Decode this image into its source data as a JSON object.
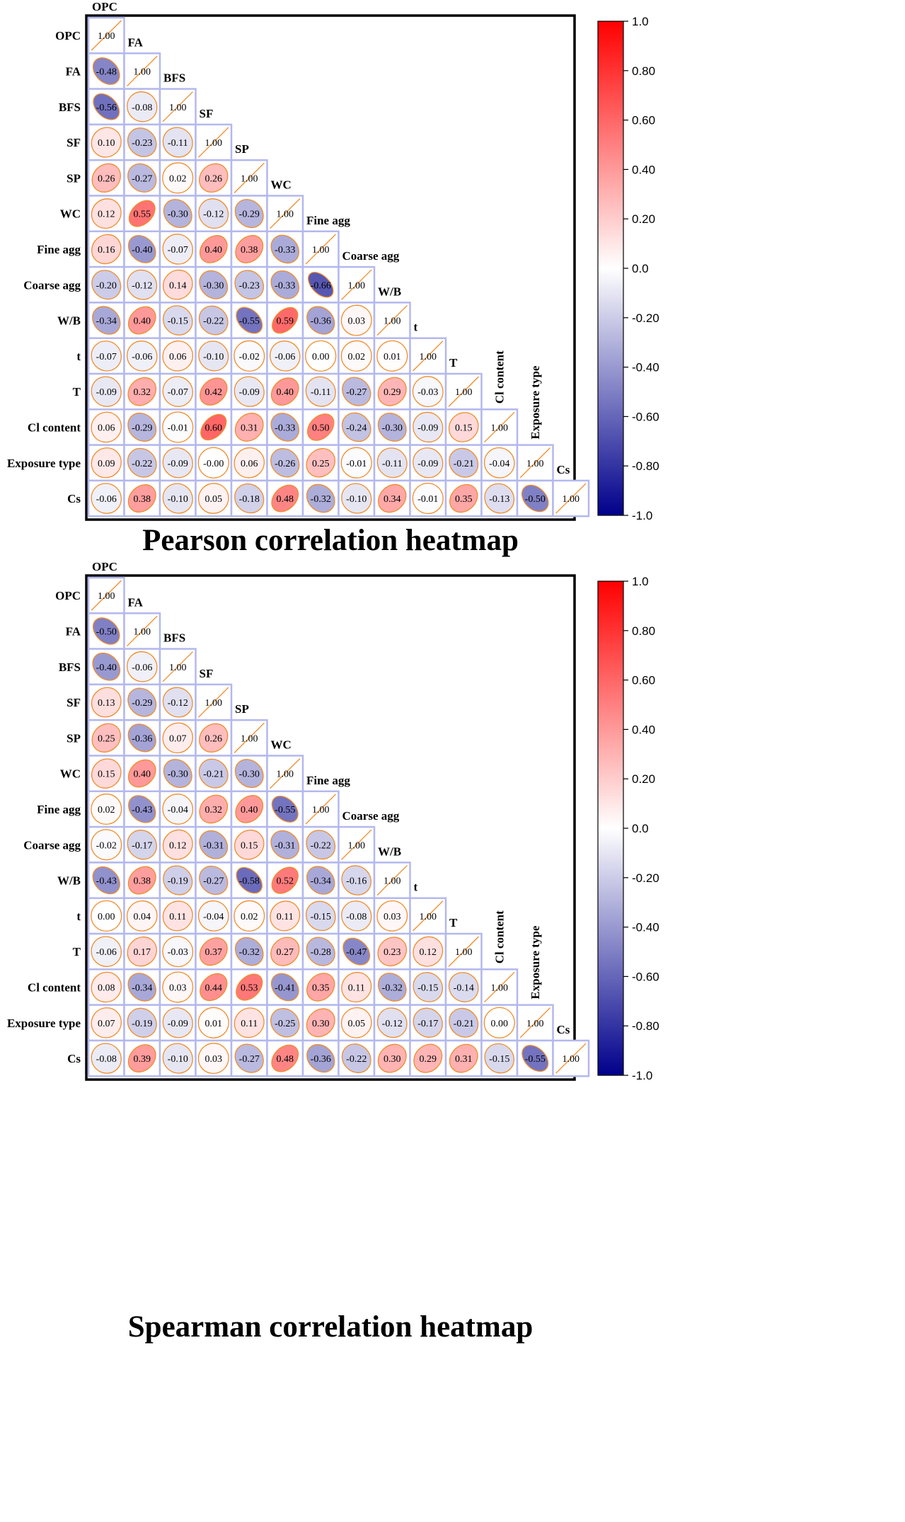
{
  "chart_data": [
    {
      "type": "heatmap",
      "title": "Pearson correlation heatmap",
      "variables": [
        "OPC",
        "FA",
        "BFS",
        "SF",
        "SP",
        "WC",
        "Fine agg",
        "Coarse agg",
        "W/B",
        "t",
        "T",
        "Cl content",
        "Exposure type",
        "Cs"
      ],
      "matrix": [
        [
          1.0
        ],
        [
          -0.48,
          1.0
        ],
        [
          -0.56,
          -0.08,
          1.0
        ],
        [
          0.1,
          -0.23,
          -0.11,
          1.0
        ],
        [
          0.26,
          -0.27,
          0.02,
          0.26,
          1.0
        ],
        [
          0.12,
          0.55,
          -0.3,
          -0.12,
          -0.29,
          1.0
        ],
        [
          0.16,
          -0.4,
          -0.07,
          0.4,
          0.38,
          -0.33,
          1.0
        ],
        [
          -0.2,
          -0.12,
          0.14,
          -0.3,
          -0.23,
          -0.33,
          -0.66,
          1.0
        ],
        [
          -0.34,
          0.4,
          -0.15,
          -0.22,
          -0.55,
          0.59,
          -0.36,
          0.03,
          1.0
        ],
        [
          -0.07,
          -0.06,
          0.06,
          -0.1,
          -0.02,
          -0.06,
          0.0,
          0.02,
          0.01,
          1.0
        ],
        [
          -0.09,
          0.32,
          -0.07,
          0.42,
          -0.09,
          0.4,
          -0.11,
          -0.27,
          0.29,
          -0.03,
          1.0
        ],
        [
          0.06,
          -0.29,
          -0.01,
          0.6,
          0.31,
          -0.33,
          0.5,
          -0.24,
          -0.3,
          -0.09,
          0.15,
          1.0
        ],
        [
          0.09,
          -0.22,
          -0.09,
          -0.0,
          0.06,
          -0.26,
          0.25,
          -0.01,
          -0.11,
          -0.09,
          -0.21,
          -0.04,
          1.0
        ],
        [
          -0.06,
          0.38,
          -0.1,
          0.05,
          -0.18,
          0.48,
          -0.32,
          -0.1,
          0.34,
          -0.01,
          0.35,
          -0.13,
          -0.5,
          1.0
        ]
      ],
      "colorbar": {
        "ticks": [
          "1.0",
          "0.80",
          "0.60",
          "0.40",
          "0.20",
          "0.0",
          "-0.20",
          "-0.40",
          "-0.60",
          "-0.80",
          "-1.0"
        ],
        "range": [
          -1.0,
          1.0
        ]
      },
      "colors": {
        "positive": "#ff0000",
        "zero": "#ffffff",
        "negative": "#00008b",
        "grid": "#b3b8ee",
        "ellipse_border": "#f08c2a"
      }
    },
    {
      "type": "heatmap",
      "title": "Spearman correlation heatmap",
      "variables": [
        "OPC",
        "FA",
        "BFS",
        "SF",
        "SP",
        "WC",
        "Fine agg",
        "Coarse agg",
        "W/B",
        "t",
        "T",
        "Cl content",
        "Exposure type",
        "Cs"
      ],
      "matrix": [
        [
          1.0
        ],
        [
          -0.5,
          1.0
        ],
        [
          -0.4,
          -0.06,
          1.0
        ],
        [
          0.13,
          -0.29,
          -0.12,
          1.0
        ],
        [
          0.25,
          -0.36,
          0.07,
          0.26,
          1.0
        ],
        [
          0.15,
          0.4,
          -0.3,
          -0.21,
          -0.3,
          1.0
        ],
        [
          0.02,
          -0.43,
          -0.04,
          0.32,
          0.4,
          -0.55,
          1.0
        ],
        [
          -0.02,
          -0.17,
          0.12,
          -0.31,
          0.15,
          -0.31,
          -0.22,
          1.0
        ],
        [
          -0.43,
          0.38,
          -0.19,
          -0.27,
          -0.58,
          0.52,
          -0.34,
          -0.16,
          1.0
        ],
        [
          0.0,
          0.04,
          0.11,
          -0.04,
          0.02,
          0.11,
          -0.15,
          -0.08,
          0.03,
          1.0
        ],
        [
          -0.06,
          0.17,
          -0.03,
          0.37,
          -0.32,
          0.27,
          -0.28,
          -0.47,
          0.23,
          0.12,
          1.0
        ],
        [
          0.08,
          -0.34,
          0.03,
          0.44,
          0.53,
          -0.41,
          0.35,
          0.11,
          -0.32,
          -0.15,
          -0.14,
          1.0
        ],
        [
          0.07,
          -0.19,
          -0.09,
          0.01,
          0.11,
          -0.25,
          0.3,
          0.05,
          -0.12,
          -0.17,
          -0.21,
          0.0,
          1.0
        ],
        [
          -0.08,
          0.39,
          -0.1,
          0.03,
          -0.27,
          0.48,
          -0.36,
          -0.22,
          0.3,
          0.29,
          0.31,
          -0.15,
          -0.55,
          1.0
        ]
      ],
      "colorbar": {
        "ticks": [
          "1.0",
          "0.80",
          "0.60",
          "0.40",
          "0.20",
          "0.0",
          "-0.20",
          "-0.40",
          "-0.60",
          "-0.80",
          "-1.0"
        ],
        "range": [
          -1.0,
          1.0
        ]
      },
      "colors": {
        "positive": "#ff0000",
        "zero": "#ffffff",
        "negative": "#00008b",
        "grid": "#b3b8ee",
        "ellipse_border": "#f08c2a"
      }
    }
  ]
}
